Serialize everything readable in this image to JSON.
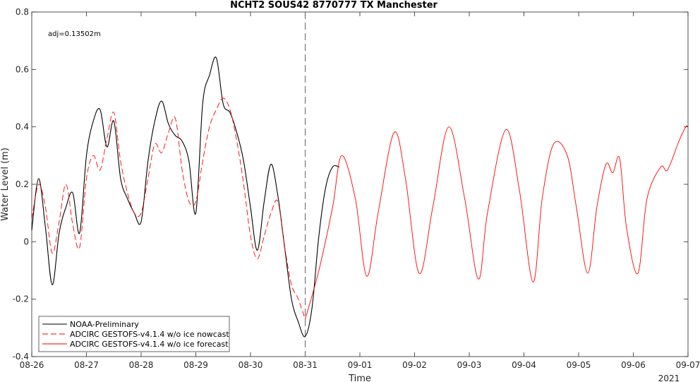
{
  "chart_data": {
    "type": "line",
    "title": "NCHT2 SOUS42 8770777 TX Manchester",
    "xlabel": "Time",
    "ylabel": "Water Level (m)",
    "annotation": "adj=0.13502m",
    "year_label": "2021",
    "x_ticks": [
      "08-26",
      "08-27",
      "08-28",
      "08-29",
      "08-30",
      "08-31",
      "09-01",
      "09-02",
      "09-03",
      "09-04",
      "09-05",
      "09-06",
      "09-07"
    ],
    "y_ticks": [
      "-0.4",
      "-0.2",
      "0",
      "0.2",
      "0.4",
      "0.6",
      "0.8"
    ],
    "xlim": [
      "08-26",
      "09-07"
    ],
    "ylim": [
      -0.4,
      0.8
    ],
    "grid": false,
    "vertical_line_at": "08-31",
    "legend_position": "bottom-left",
    "colors": {
      "observed": "#000000",
      "nowcast": "#ff0000",
      "forecast": "#ff0000"
    },
    "series": [
      {
        "name": "NOAA-Preliminary",
        "style": "solid",
        "x": [
          "08-26 00:00",
          "08-26 03:00",
          "08-26 06:00",
          "08-26 09:00",
          "08-26 12:00",
          "08-26 15:00",
          "08-26 18:00",
          "08-26 21:00",
          "08-27 00:00",
          "08-27 03:00",
          "08-27 06:00",
          "08-27 09:00",
          "08-27 12:00",
          "08-27 15:00",
          "08-27 18:00",
          "08-27 21:00",
          "08-28 00:00",
          "08-28 03:00",
          "08-28 06:00",
          "08-28 09:00",
          "08-28 12:00",
          "08-28 15:00",
          "08-28 18:00",
          "08-28 21:00",
          "08-29 00:00",
          "08-29 03:00",
          "08-29 06:00",
          "08-29 09:00",
          "08-29 12:00",
          "08-29 15:00",
          "08-29 18:00",
          "08-29 21:00",
          "08-30 00:00",
          "08-30 03:00",
          "08-30 06:00",
          "08-30 09:00",
          "08-30 12:00",
          "08-30 15:00",
          "08-30 18:00",
          "08-30 21:00",
          "08-31 00:00",
          "08-31 03:00",
          "08-31 06:00",
          "08-31 09:00",
          "08-31 12:00",
          "08-31 15:00"
        ],
        "values": [
          0.04,
          0.22,
          0.05,
          -0.15,
          0.03,
          0.12,
          0.17,
          0.03,
          0.3,
          0.42,
          0.46,
          0.33,
          0.42,
          0.22,
          0.15,
          0.1,
          0.07,
          0.28,
          0.42,
          0.49,
          0.41,
          0.37,
          0.35,
          0.28,
          0.1,
          0.48,
          0.58,
          0.64,
          0.48,
          0.45,
          0.38,
          0.28,
          0.12,
          -0.03,
          0.14,
          0.27,
          0.16,
          -0.02,
          -0.2,
          -0.28,
          -0.33,
          -0.23,
          0.02,
          0.19,
          0.26,
          0.26
        ]
      },
      {
        "name": "ADCIRC GESTOFS-v4.1.4 w/o ice nowcast",
        "style": "dashed",
        "x": [
          "08-26 00:00",
          "08-26 03:00",
          "08-26 06:00",
          "08-26 09:00",
          "08-26 12:00",
          "08-26 15:00",
          "08-26 18:00",
          "08-26 21:00",
          "08-27 00:00",
          "08-27 03:00",
          "08-27 06:00",
          "08-27 09:00",
          "08-27 12:00",
          "08-27 15:00",
          "08-27 18:00",
          "08-27 21:00",
          "08-28 00:00",
          "08-28 03:00",
          "08-28 06:00",
          "08-28 09:00",
          "08-28 12:00",
          "08-28 15:00",
          "08-28 18:00",
          "08-28 21:00",
          "08-29 00:00",
          "08-29 03:00",
          "08-29 06:00",
          "08-29 09:00",
          "08-29 12:00",
          "08-29 15:00",
          "08-29 18:00",
          "08-29 21:00",
          "08-30 00:00",
          "08-30 03:00",
          "08-30 06:00",
          "08-30 09:00",
          "08-30 12:00",
          "08-30 15:00",
          "08-30 18:00",
          "08-30 21:00",
          "08-31 00:00"
        ],
        "values": [
          0.08,
          0.2,
          0.12,
          -0.04,
          0.07,
          0.2,
          0.06,
          -0.02,
          0.22,
          0.3,
          0.25,
          0.36,
          0.45,
          0.28,
          0.17,
          0.1,
          0.1,
          0.22,
          0.34,
          0.31,
          0.38,
          0.43,
          0.25,
          0.14,
          0.14,
          0.28,
          0.4,
          0.46,
          0.5,
          0.46,
          0.35,
          0.2,
          0.02,
          -0.06,
          0.02,
          0.1,
          0.14,
          -0.02,
          -0.15,
          -0.2,
          -0.27
        ]
      },
      {
        "name": "ADCIRC GESTOFS-v4.1.4 w/o ice forecast",
        "style": "solid",
        "x": [
          "08-31 00:00",
          "08-31 06:00",
          "08-31 12:00",
          "08-31 16:00",
          "08-31 22:00",
          "09-01 03:00",
          "09-01 08:00",
          "09-01 15:00",
          "09-01 20:00",
          "09-02 02:00",
          "09-02 08:00",
          "09-02 15:00",
          "09-02 22:00",
          "09-03 04:00",
          "09-03 08:00",
          "09-03 16:00",
          "09-03 22:00",
          "09-04 04:00",
          "09-04 08:00",
          "09-04 13:00",
          "09-04 19:00",
          "09-04 23:00",
          "09-05 04:00",
          "09-05 08:00",
          "09-05 12:00",
          "09-05 15:00",
          "09-05 18:00",
          "09-05 21:00",
          "09-06 02:00",
          "09-06 06:00",
          "09-06 12:00",
          "09-06 15:00",
          "09-06 20:00",
          "09-06 23:00",
          "09-07 00:00"
        ],
        "values": [
          -0.27,
          -0.1,
          0.12,
          0.3,
          0.15,
          -0.12,
          0.1,
          0.38,
          0.22,
          -0.11,
          0.12,
          0.4,
          0.15,
          -0.13,
          0.1,
          0.39,
          0.18,
          -0.14,
          0.15,
          0.34,
          0.3,
          0.12,
          -0.11,
          0.12,
          0.27,
          0.24,
          0.29,
          0.05,
          -0.11,
          0.15,
          0.26,
          0.25,
          0.35,
          0.4,
          0.4
        ]
      }
    ]
  }
}
